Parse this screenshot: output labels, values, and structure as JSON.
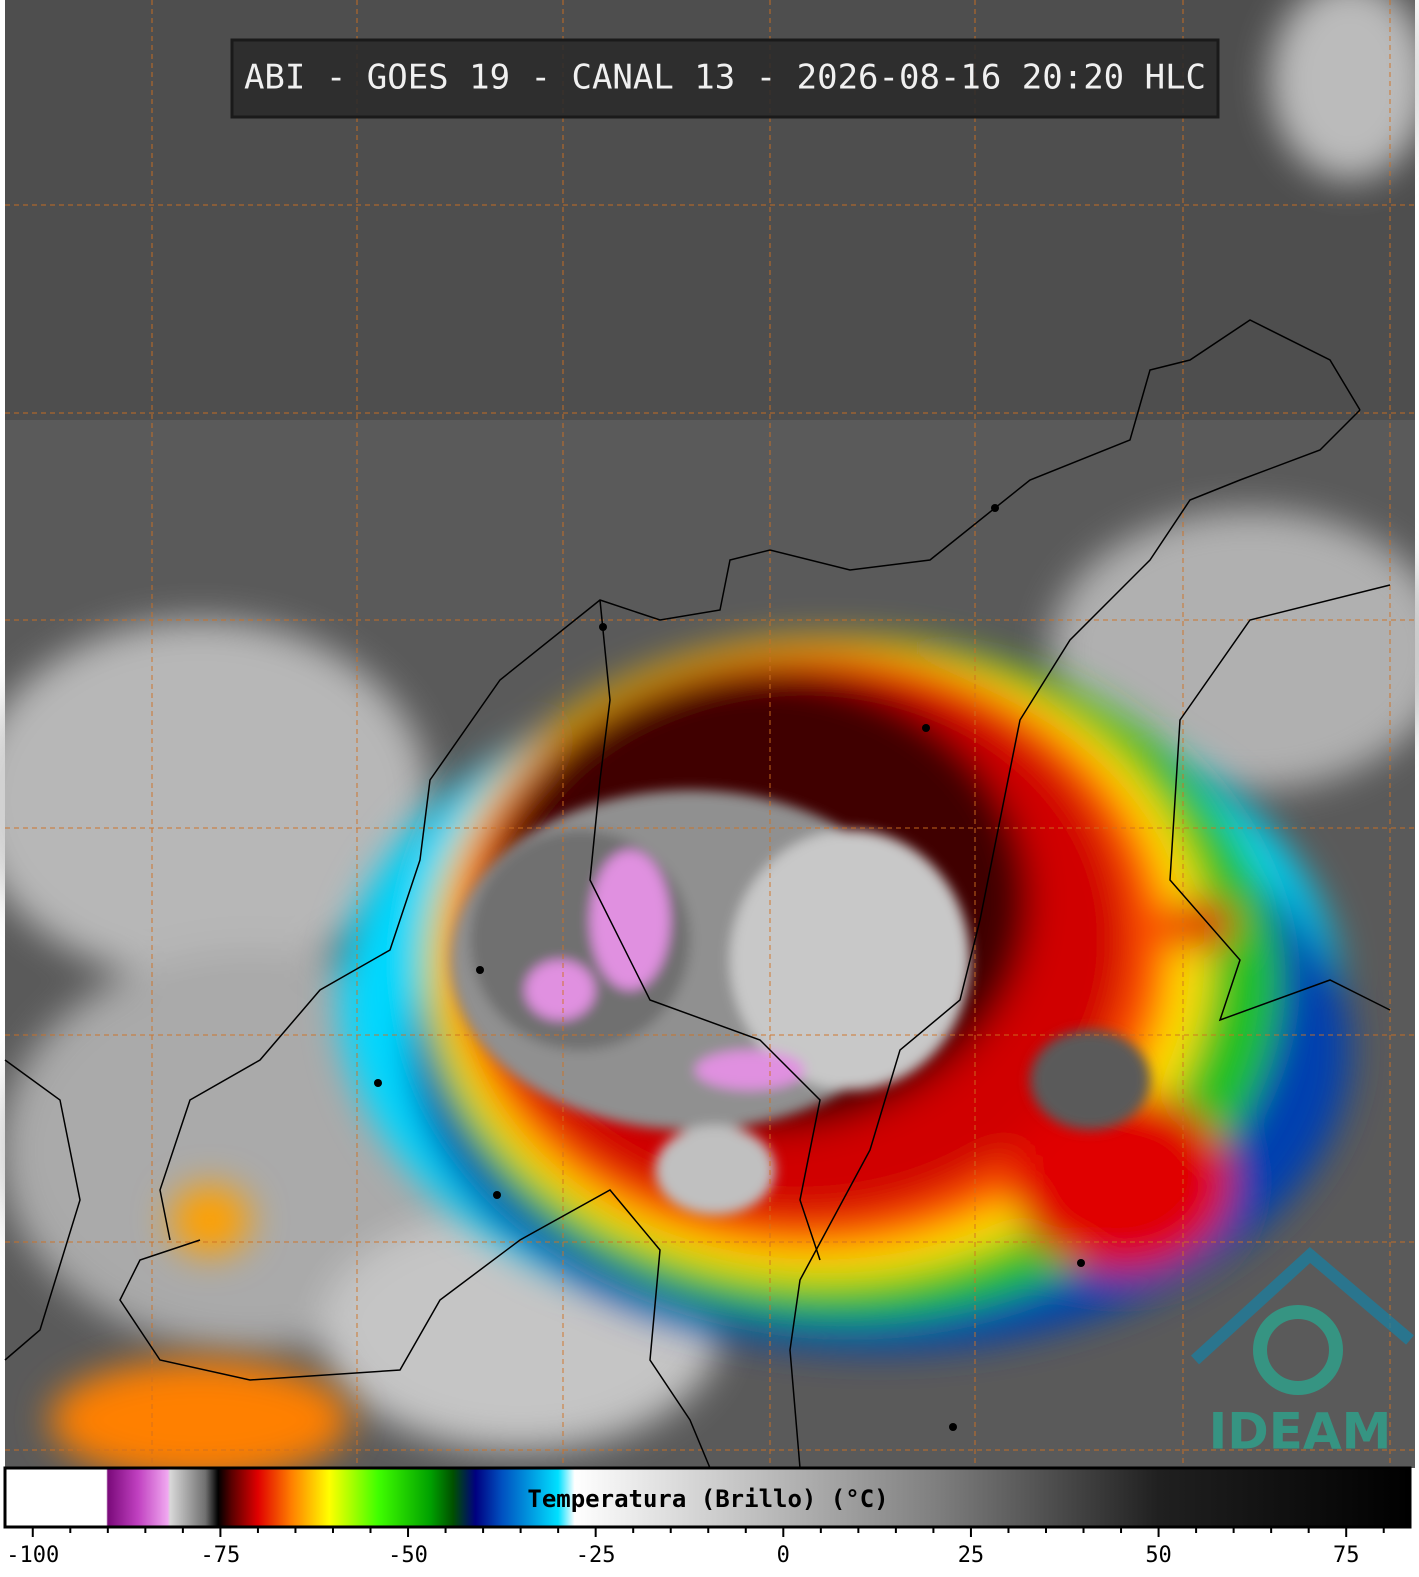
{
  "header": {
    "title": "ABI - GOES 19 - CANAL 13 - 2026-08-16 20:20 HLC"
  },
  "logo": {
    "text": "IDEAM"
  },
  "colorbar": {
    "label": "Temperatura (Brillo) (°C)",
    "xlim": [
      -103.7,
      83.5
    ],
    "ticks": [
      -100,
      -75,
      -50,
      -25,
      0,
      25,
      50,
      75
    ],
    "minor_ticks": [
      -95,
      -90,
      -85,
      -80,
      -70,
      -65,
      -60,
      -55,
      -45,
      -40,
      -35,
      -30,
      -20,
      -15,
      -10,
      -5,
      5,
      10,
      15,
      20,
      30,
      35,
      40,
      45,
      55,
      60,
      65,
      70,
      80
    ],
    "stops": [
      {
        "value": -103.7,
        "color": "#ffffff"
      },
      {
        "value": -90.2,
        "color": "#ffffff"
      },
      {
        "value": -90,
        "color": "#7a0a7a"
      },
      {
        "value": -86,
        "color": "#c040c0"
      },
      {
        "value": -82,
        "color": "#f0a8f0"
      },
      {
        "value": -81.7,
        "color": "#d8d8d8"
      },
      {
        "value": -77,
        "color": "#707070"
      },
      {
        "value": -75.3,
        "color": "#000000"
      },
      {
        "value": -73.5,
        "color": "#5a0000"
      },
      {
        "value": -70,
        "color": "#e00000"
      },
      {
        "value": -65.5,
        "color": "#ff8000"
      },
      {
        "value": -60.5,
        "color": "#ffff00"
      },
      {
        "value": -54,
        "color": "#40ff00"
      },
      {
        "value": -47,
        "color": "#00a000"
      },
      {
        "value": -44,
        "color": "#005000"
      },
      {
        "value": -41,
        "color": "#000080"
      },
      {
        "value": -37.5,
        "color": "#0050c0"
      },
      {
        "value": -30,
        "color": "#00e0ff"
      },
      {
        "value": -27.8,
        "color": "#ffffff"
      },
      {
        "value": -10,
        "color": "#d0d0d0"
      },
      {
        "value": 20,
        "color": "#808080"
      },
      {
        "value": 50,
        "color": "#202020"
      },
      {
        "value": 83.5,
        "color": "#000000"
      }
    ]
  }
}
